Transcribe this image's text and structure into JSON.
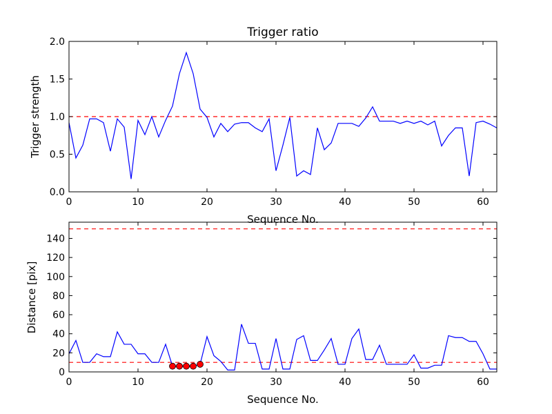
{
  "chart_data": [
    {
      "type": "line",
      "title": "Trigger ratio",
      "xlabel": "Sequence No.",
      "ylabel": "Trigger strength",
      "xlim": [
        0,
        62
      ],
      "ylim": [
        0,
        2.0
      ],
      "grid": false,
      "xticks": [
        "0",
        "10",
        "20",
        "30",
        "40",
        "50",
        "60"
      ],
      "yticks": [
        "0.0",
        "0.5",
        "1.0",
        "1.5",
        "2.0"
      ],
      "line_color": "#0000ff",
      "threshold_color": "#ff0000",
      "thresholds": [
        1.0
      ],
      "series": [
        {
          "x": [
            0,
            1,
            2,
            3,
            4,
            5,
            6,
            7,
            8,
            9,
            10,
            11,
            12,
            13,
            14,
            15,
            16,
            17,
            18,
            19,
            20,
            21,
            22,
            23,
            24,
            25,
            26,
            27,
            28,
            29,
            30,
            31,
            32,
            33,
            34,
            35,
            36,
            37,
            38,
            39,
            40,
            41,
            42,
            43,
            44,
            45,
            46,
            47,
            48,
            49,
            50,
            51,
            52,
            53,
            54,
            55,
            56,
            57,
            58,
            59,
            60,
            61,
            62
          ],
          "values": [
            0.92,
            0.45,
            0.62,
            0.97,
            0.97,
            0.92,
            0.54,
            0.97,
            0.86,
            0.17,
            0.95,
            0.76,
            1.0,
            0.73,
            0.95,
            1.14,
            1.57,
            1.85,
            1.57,
            1.1,
            0.99,
            0.73,
            0.91,
            0.8,
            0.9,
            0.92,
            0.92,
            0.85,
            0.8,
            0.97,
            0.28,
            0.62,
            0.99,
            0.21,
            0.28,
            0.23,
            0.85,
            0.56,
            0.65,
            0.91,
            0.91,
            0.91,
            0.87,
            0.98,
            1.13,
            0.94,
            0.94,
            0.94,
            0.91,
            0.94,
            0.91,
            0.94,
            0.89,
            0.94,
            0.61,
            0.75,
            0.85,
            0.85,
            0.21,
            0.92,
            0.94,
            0.9,
            0.85
          ]
        }
      ]
    },
    {
      "type": "line",
      "title": "",
      "xlabel": "Sequence No.",
      "ylabel": "Distance [pix]",
      "xlim": [
        0,
        62
      ],
      "ylim": [
        0,
        157
      ],
      "grid": false,
      "xticks": [
        "0",
        "10",
        "20",
        "30",
        "40",
        "50",
        "60"
      ],
      "yticks": [
        "0",
        "20",
        "40",
        "60",
        "80",
        "100",
        "120",
        "140"
      ],
      "line_color": "#0000ff",
      "threshold_color": "#ff0000",
      "marker_color": "#ff0000",
      "thresholds": [
        10,
        150
      ],
      "series": [
        {
          "x": [
            0,
            1,
            2,
            3,
            4,
            5,
            6,
            7,
            8,
            9,
            10,
            11,
            12,
            13,
            14,
            15,
            16,
            17,
            18,
            19,
            20,
            21,
            22,
            23,
            24,
            25,
            26,
            27,
            28,
            29,
            30,
            31,
            32,
            33,
            34,
            35,
            36,
            37,
            38,
            39,
            40,
            41,
            42,
            43,
            44,
            45,
            46,
            47,
            48,
            49,
            50,
            51,
            52,
            53,
            54,
            55,
            56,
            57,
            58,
            59,
            60,
            61,
            62
          ],
          "values": [
            19,
            33,
            10,
            10,
            19,
            16,
            16,
            42,
            29,
            29,
            19,
            19,
            10,
            10,
            29,
            6,
            6,
            6,
            6,
            8,
            37,
            17,
            11,
            2,
            2,
            50,
            30,
            30,
            3,
            3,
            35,
            3,
            3,
            34,
            38,
            12,
            12,
            23,
            35,
            8,
            8,
            35,
            45,
            13,
            13,
            28,
            8,
            8,
            8,
            8,
            18,
            4,
            4,
            7,
            7,
            38,
            36,
            36,
            32,
            32,
            19,
            3,
            3
          ]
        }
      ],
      "markers": {
        "x": [
          15,
          16,
          17,
          18,
          19
        ],
        "values": [
          6,
          6,
          6,
          6,
          8
        ]
      }
    }
  ]
}
